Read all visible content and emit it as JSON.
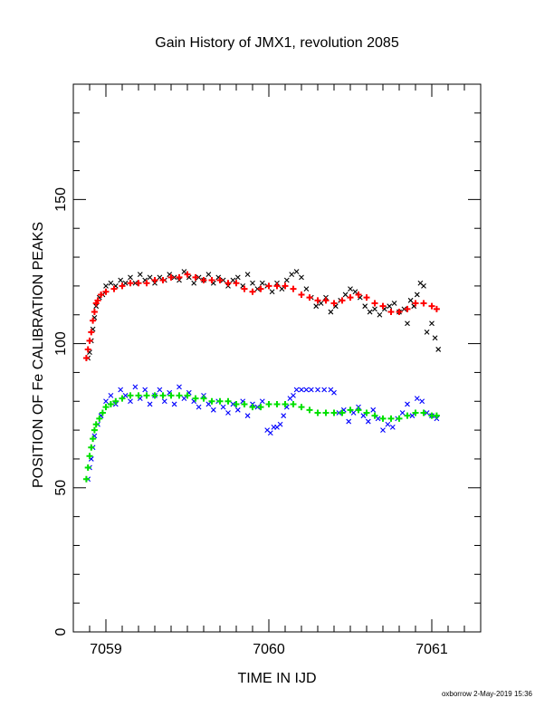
{
  "chart_data": {
    "type": "scatter",
    "title": "Gain History of JMX1, revolution 2085",
    "xlabel": "TIME IN IJD",
    "ylabel": "POSITION OF Fe CALIBRATION PEAKS",
    "xlim": [
      7058.8,
      7061.3
    ],
    "ylim": [
      0,
      190
    ],
    "xticks": [
      7059,
      7060,
      7061
    ],
    "xtick_labels": [
      "7059",
      "7060",
      "7061"
    ],
    "yticks": [
      0,
      50,
      100,
      150
    ],
    "ytick_labels": [
      "0",
      "50",
      "100",
      "150"
    ],
    "footer": "oxborrow  2-May-2019 15:36",
    "grid": false,
    "colors": {
      "upper_raw": "#000000",
      "upper_fit": "#ff0000",
      "lower_raw": "#0000ff",
      "lower_fit": "#00e000"
    },
    "series": [
      {
        "key": "upper_raw",
        "marker": "x",
        "points": [
          [
            7058.89,
            95
          ],
          [
            7058.9,
            97
          ],
          [
            7058.91,
            101
          ],
          [
            7058.92,
            105
          ],
          [
            7058.93,
            109
          ],
          [
            7058.94,
            113
          ],
          [
            7058.96,
            116
          ],
          [
            7058.98,
            117
          ],
          [
            7059.0,
            120
          ],
          [
            7059.03,
            121
          ],
          [
            7059.06,
            120
          ],
          [
            7059.09,
            122
          ],
          [
            7059.12,
            121
          ],
          [
            7059.15,
            123
          ],
          [
            7059.18,
            121
          ],
          [
            7059.21,
            124
          ],
          [
            7059.24,
            122
          ],
          [
            7059.27,
            123
          ],
          [
            7059.3,
            121
          ],
          [
            7059.33,
            123
          ],
          [
            7059.36,
            122
          ],
          [
            7059.39,
            124
          ],
          [
            7059.42,
            123
          ],
          [
            7059.45,
            122
          ],
          [
            7059.48,
            125
          ],
          [
            7059.51,
            123
          ],
          [
            7059.54,
            121
          ],
          [
            7059.57,
            123
          ],
          [
            7059.6,
            122
          ],
          [
            7059.63,
            124
          ],
          [
            7059.66,
            121
          ],
          [
            7059.69,
            123
          ],
          [
            7059.72,
            122
          ],
          [
            7059.75,
            120
          ],
          [
            7059.78,
            122
          ],
          [
            7059.81,
            123
          ],
          [
            7059.84,
            120
          ],
          [
            7059.87,
            124
          ],
          [
            7059.9,
            121
          ],
          [
            7059.93,
            119
          ],
          [
            7059.96,
            121
          ],
          [
            7059.99,
            120
          ],
          [
            7060.02,
            118
          ],
          [
            7060.05,
            121
          ],
          [
            7060.08,
            119
          ],
          [
            7060.11,
            122
          ],
          [
            7060.14,
            124
          ],
          [
            7060.17,
            125
          ],
          [
            7060.2,
            123
          ],
          [
            7060.23,
            119
          ],
          [
            7060.26,
            116
          ],
          [
            7060.29,
            113
          ],
          [
            7060.32,
            114
          ],
          [
            7060.35,
            116
          ],
          [
            7060.38,
            111
          ],
          [
            7060.41,
            113
          ],
          [
            7060.44,
            115
          ],
          [
            7060.47,
            117
          ],
          [
            7060.5,
            119
          ],
          [
            7060.53,
            118
          ],
          [
            7060.56,
            116
          ],
          [
            7060.59,
            113
          ],
          [
            7060.62,
            111
          ],
          [
            7060.65,
            112
          ],
          [
            7060.68,
            110
          ],
          [
            7060.71,
            112
          ],
          [
            7060.74,
            113
          ],
          [
            7060.77,
            114
          ],
          [
            7060.8,
            111
          ],
          [
            7060.83,
            112
          ],
          [
            7060.85,
            107
          ],
          [
            7060.87,
            115
          ],
          [
            7060.89,
            113
          ],
          [
            7060.91,
            117
          ],
          [
            7060.93,
            121
          ],
          [
            7060.95,
            120
          ],
          [
            7060.97,
            104
          ],
          [
            7061.0,
            107
          ],
          [
            7061.02,
            102
          ],
          [
            7061.04,
            98
          ]
        ]
      },
      {
        "key": "upper_fit",
        "marker": "+",
        "points": [
          [
            7058.88,
            95
          ],
          [
            7058.89,
            98
          ],
          [
            7058.9,
            101
          ],
          [
            7058.91,
            104
          ],
          [
            7058.92,
            108
          ],
          [
            7058.93,
            111
          ],
          [
            7058.94,
            114
          ],
          [
            7058.95,
            115
          ],
          [
            7058.97,
            117
          ],
          [
            7059.0,
            118
          ],
          [
            7059.05,
            119
          ],
          [
            7059.1,
            120
          ],
          [
            7059.15,
            121
          ],
          [
            7059.2,
            121
          ],
          [
            7059.25,
            121
          ],
          [
            7059.3,
            122
          ],
          [
            7059.35,
            122
          ],
          [
            7059.4,
            123
          ],
          [
            7059.45,
            123
          ],
          [
            7059.5,
            124
          ],
          [
            7059.55,
            123
          ],
          [
            7059.6,
            122
          ],
          [
            7059.65,
            122
          ],
          [
            7059.7,
            122
          ],
          [
            7059.75,
            121
          ],
          [
            7059.8,
            121
          ],
          [
            7059.85,
            119
          ],
          [
            7059.9,
            118
          ],
          [
            7059.95,
            119
          ],
          [
            7060.0,
            120
          ],
          [
            7060.05,
            120
          ],
          [
            7060.1,
            120
          ],
          [
            7060.15,
            119
          ],
          [
            7060.2,
            117
          ],
          [
            7060.25,
            116
          ],
          [
            7060.3,
            115
          ],
          [
            7060.35,
            115
          ],
          [
            7060.4,
            114
          ],
          [
            7060.45,
            115
          ],
          [
            7060.5,
            116
          ],
          [
            7060.55,
            117
          ],
          [
            7060.6,
            116
          ],
          [
            7060.65,
            114
          ],
          [
            7060.7,
            113
          ],
          [
            7060.75,
            111
          ],
          [
            7060.8,
            111
          ],
          [
            7060.85,
            112
          ],
          [
            7060.9,
            114
          ],
          [
            7060.95,
            114
          ],
          [
            7061.0,
            113
          ],
          [
            7061.03,
            112
          ]
        ]
      },
      {
        "key": "lower_raw",
        "marker": "x",
        "points": [
          [
            7058.89,
            53
          ],
          [
            7058.9,
            57
          ],
          [
            7058.91,
            60
          ],
          [
            7058.92,
            64
          ],
          [
            7058.93,
            68
          ],
          [
            7058.95,
            72
          ],
          [
            7058.97,
            75
          ],
          [
            7059.0,
            80
          ],
          [
            7059.03,
            82
          ],
          [
            7059.06,
            79
          ],
          [
            7059.09,
            84
          ],
          [
            7059.12,
            82
          ],
          [
            7059.15,
            80
          ],
          [
            7059.18,
            85
          ],
          [
            7059.21,
            81
          ],
          [
            7059.24,
            84
          ],
          [
            7059.27,
            79
          ],
          [
            7059.3,
            82
          ],
          [
            7059.33,
            84
          ],
          [
            7059.36,
            80
          ],
          [
            7059.39,
            83
          ],
          [
            7059.42,
            79
          ],
          [
            7059.45,
            85
          ],
          [
            7059.48,
            81
          ],
          [
            7059.51,
            83
          ],
          [
            7059.54,
            80
          ],
          [
            7059.57,
            78
          ],
          [
            7059.6,
            82
          ],
          [
            7059.63,
            79
          ],
          [
            7059.66,
            77
          ],
          [
            7059.69,
            80
          ],
          [
            7059.72,
            78
          ],
          [
            7059.75,
            76
          ],
          [
            7059.78,
            79
          ],
          [
            7059.81,
            77
          ],
          [
            7059.84,
            80
          ],
          [
            7059.87,
            75
          ],
          [
            7059.9,
            79
          ],
          [
            7059.93,
            78
          ],
          [
            7059.96,
            80
          ],
          [
            7059.99,
            70
          ],
          [
            7060.01,
            69
          ],
          [
            7060.03,
            71
          ],
          [
            7060.05,
            71
          ],
          [
            7060.07,
            72
          ],
          [
            7060.09,
            75
          ],
          [
            7060.11,
            78
          ],
          [
            7060.13,
            81
          ],
          [
            7060.15,
            82
          ],
          [
            7060.17,
            84
          ],
          [
            7060.2,
            84
          ],
          [
            7060.23,
            84
          ],
          [
            7060.26,
            84
          ],
          [
            7060.3,
            84
          ],
          [
            7060.34,
            84
          ],
          [
            7060.38,
            84
          ],
          [
            7060.4,
            83
          ],
          [
            7060.43,
            76
          ],
          [
            7060.46,
            77
          ],
          [
            7060.49,
            73
          ],
          [
            7060.52,
            76
          ],
          [
            7060.55,
            78
          ],
          [
            7060.58,
            75
          ],
          [
            7060.61,
            73
          ],
          [
            7060.64,
            77
          ],
          [
            7060.67,
            74
          ],
          [
            7060.7,
            70
          ],
          [
            7060.73,
            72
          ],
          [
            7060.76,
            71
          ],
          [
            7060.79,
            74
          ],
          [
            7060.82,
            76
          ],
          [
            7060.85,
            79
          ],
          [
            7060.88,
            75
          ],
          [
            7060.91,
            81
          ],
          [
            7060.94,
            80
          ],
          [
            7060.97,
            76
          ],
          [
            7061.0,
            75
          ],
          [
            7061.03,
            74
          ]
        ]
      },
      {
        "key": "lower_fit",
        "marker": "+",
        "points": [
          [
            7058.88,
            53
          ],
          [
            7058.89,
            57
          ],
          [
            7058.9,
            61
          ],
          [
            7058.91,
            64
          ],
          [
            7058.92,
            67
          ],
          [
            7058.93,
            70
          ],
          [
            7058.94,
            72
          ],
          [
            7058.96,
            74
          ],
          [
            7058.98,
            76
          ],
          [
            7059.0,
            78
          ],
          [
            7059.03,
            79
          ],
          [
            7059.06,
            80
          ],
          [
            7059.1,
            81
          ],
          [
            7059.15,
            82
          ],
          [
            7059.2,
            82
          ],
          [
            7059.25,
            82
          ],
          [
            7059.3,
            82
          ],
          [
            7059.35,
            82
          ],
          [
            7059.4,
            82
          ],
          [
            7059.45,
            82
          ],
          [
            7059.5,
            82
          ],
          [
            7059.55,
            81
          ],
          [
            7059.6,
            81
          ],
          [
            7059.65,
            80
          ],
          [
            7059.7,
            80
          ],
          [
            7059.75,
            80
          ],
          [
            7059.8,
            79
          ],
          [
            7059.85,
            79
          ],
          [
            7059.9,
            78
          ],
          [
            7059.95,
            78
          ],
          [
            7060.0,
            79
          ],
          [
            7060.05,
            79
          ],
          [
            7060.1,
            79
          ],
          [
            7060.15,
            79
          ],
          [
            7060.2,
            78
          ],
          [
            7060.25,
            77
          ],
          [
            7060.3,
            76
          ],
          [
            7060.35,
            76
          ],
          [
            7060.4,
            76
          ],
          [
            7060.45,
            76
          ],
          [
            7060.5,
            77
          ],
          [
            7060.55,
            77
          ],
          [
            7060.6,
            76
          ],
          [
            7060.65,
            75
          ],
          [
            7060.7,
            74
          ],
          [
            7060.75,
            74
          ],
          [
            7060.8,
            74
          ],
          [
            7060.85,
            75
          ],
          [
            7060.9,
            76
          ],
          [
            7060.95,
            76
          ],
          [
            7061.0,
            75
          ],
          [
            7061.03,
            75
          ]
        ]
      }
    ]
  }
}
